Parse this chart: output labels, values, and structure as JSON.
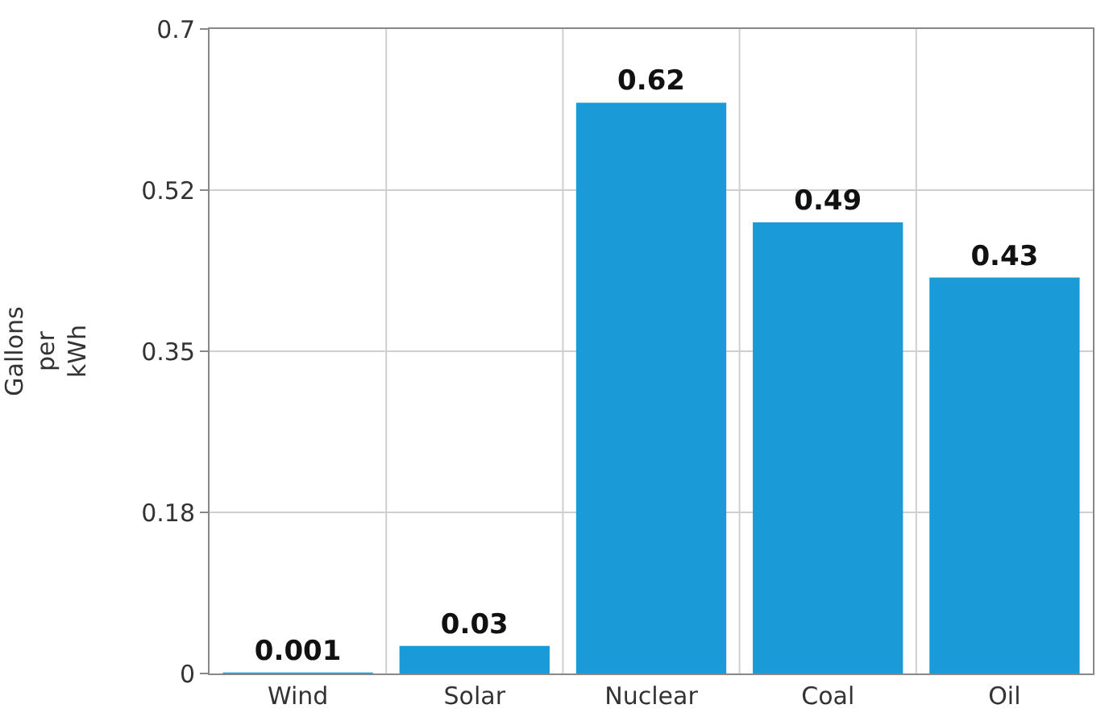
{
  "chart_data": {
    "type": "bar",
    "ylabel": "Gallons per kWh",
    "categories": [
      "Wind",
      "Solar",
      "Nuclear",
      "Coal",
      "Oil"
    ],
    "values": [
      0.001,
      0.03,
      0.62,
      0.49,
      0.43
    ],
    "color": "#1a9bd7",
    "ylim": [
      0,
      0.7
    ],
    "yticks": [
      0,
      {
        "value": 0.175,
        "label": "0.18"
      },
      0.35,
      {
        "value": 0.525,
        "label": "0.52"
      },
      0.7
    ],
    "grid": true,
    "data_labels": true
  }
}
